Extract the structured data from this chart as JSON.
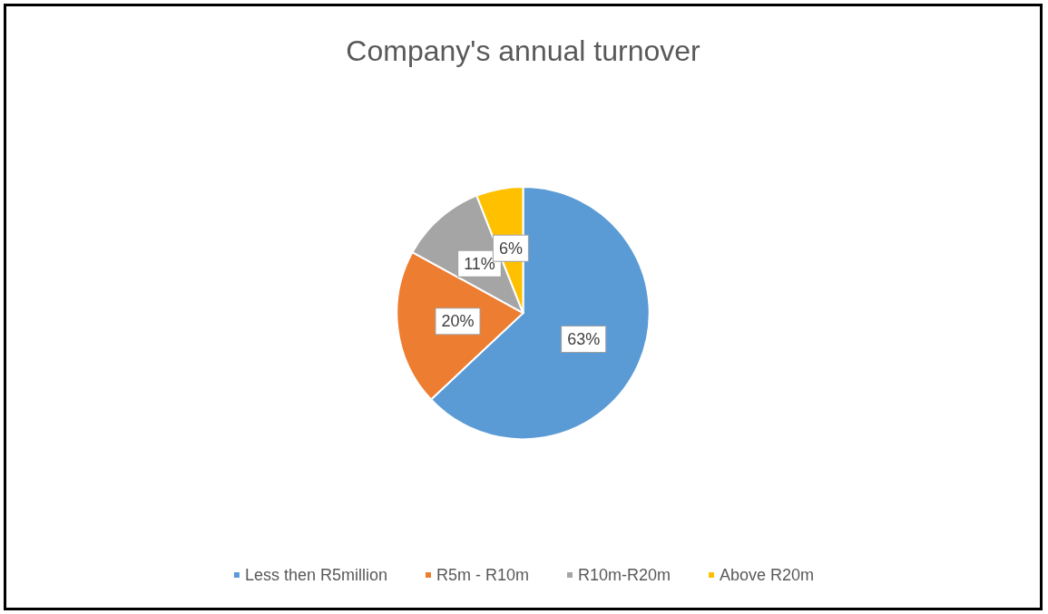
{
  "chart_data": {
    "type": "pie",
    "title": "Company's annual turnover",
    "categories": [
      "Less then R5million",
      "R5m - R10m",
      "R10m-R20m",
      "Above R20m"
    ],
    "values": [
      63,
      20,
      11,
      6
    ],
    "colors": [
      "#5b9bd5",
      "#ed7d31",
      "#a5a5a5",
      "#ffc000"
    ],
    "value_labels": [
      "63%",
      "20%",
      "11%",
      "6%"
    ],
    "legend": "bottom"
  }
}
